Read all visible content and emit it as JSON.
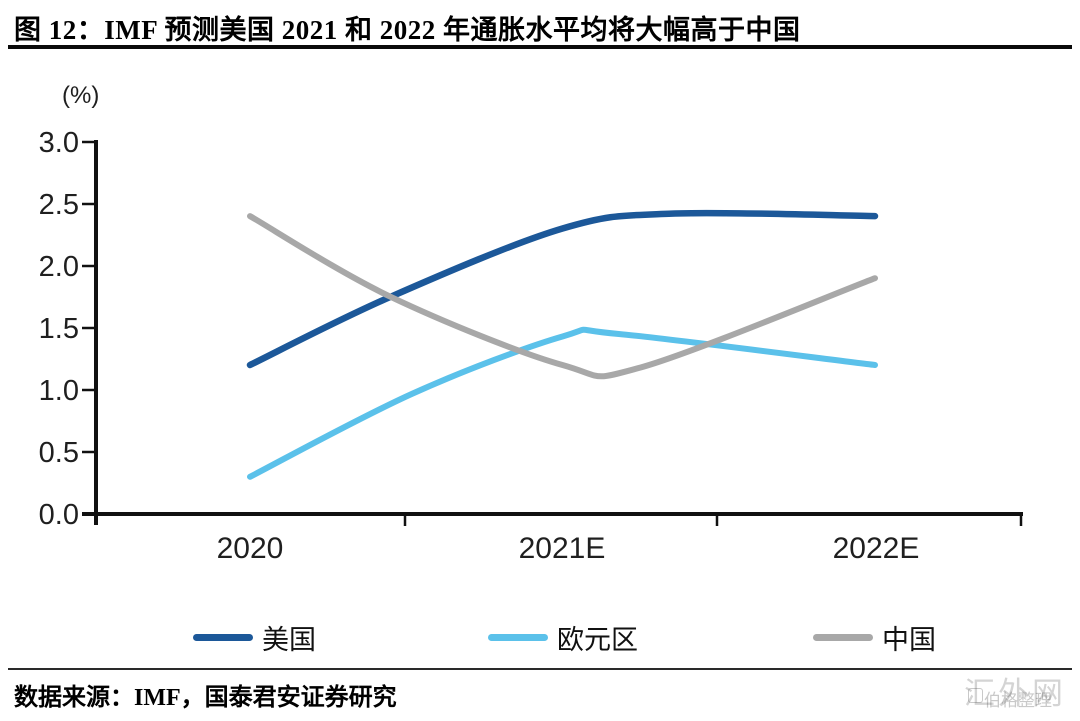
{
  "title": "图 12：IMF 预测美国 2021 和 2022 年通胀水平均将大幅高于中国",
  "source_note": "数据来源：IMF，国泰君安证券研究",
  "watermark": {
    "primary": "汇外网",
    "secondary": "伯格整理"
  },
  "chart_data": {
    "type": "line",
    "title": "IMF 预测美国 2021 和 2022 年通胀水平均将大幅高于中国",
    "unit_label": "(%)",
    "xlabel": "",
    "ylabel": "(%)",
    "categories": [
      "2020",
      "2021E",
      "2022E"
    ],
    "y_tick_labels": [
      "3.0",
      "2.5",
      "2.0",
      "1.5",
      "1.0",
      "0.5",
      "0.0"
    ],
    "ylim": [
      0.0,
      3.0
    ],
    "y_step": 0.5,
    "grid": false,
    "legend_position": "bottom",
    "series": [
      {
        "name": "美国",
        "color": "#1c5899",
        "values": [
          1.2,
          2.3,
          2.4
        ],
        "curve": [
          [
            0,
            1.2
          ],
          [
            0.45,
            1.75
          ],
          [
            1,
            2.3
          ],
          [
            1.35,
            2.42
          ],
          [
            2,
            2.4
          ]
        ]
      },
      {
        "name": "欧元区",
        "color": "#5bc1ea",
        "values": [
          0.3,
          1.4,
          1.2
        ],
        "curve": [
          [
            0,
            0.3
          ],
          [
            0.52,
            0.97
          ],
          [
            1,
            1.43
          ],
          [
            1.18,
            1.45
          ],
          [
            2,
            1.2
          ]
        ]
      },
      {
        "name": "中国",
        "color": "#a8a8a8",
        "values": [
          2.4,
          1.2,
          1.9
        ],
        "curve": [
          [
            0,
            2.4
          ],
          [
            0.45,
            1.75
          ],
          [
            1,
            1.2
          ],
          [
            1.25,
            1.18
          ],
          [
            2,
            1.9
          ]
        ]
      }
    ]
  }
}
